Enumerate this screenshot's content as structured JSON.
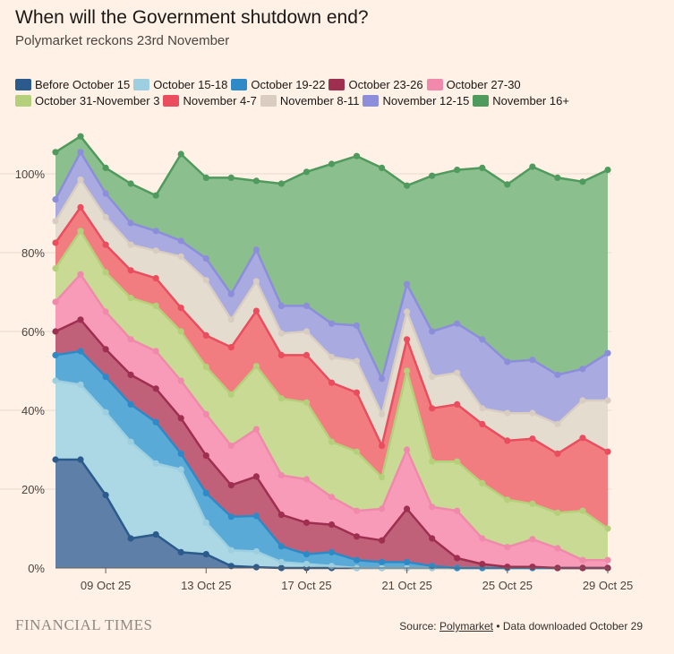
{
  "header": {
    "title": "When will the Government shutdown end?",
    "subtitle": "Polymarket reckons 23rd November"
  },
  "footer": {
    "brand": "FINANCIAL TIMES",
    "source_prefix": "Source: ",
    "source_link": "Polymarket",
    "source_suffix": " • Data downloaded October 29"
  },
  "chart_data": {
    "type": "area",
    "stacked": true,
    "x": [
      "Oct 07",
      "Oct 08",
      "Oct 09",
      "Oct 10",
      "Oct 11",
      "Oct 12",
      "Oct 13",
      "Oct 14",
      "Oct 15",
      "Oct 16",
      "Oct 17",
      "Oct 18",
      "Oct 19",
      "Oct 20",
      "Oct 21",
      "Oct 22",
      "Oct 23",
      "Oct 24",
      "Oct 25",
      "Oct 26",
      "Oct 27",
      "Oct 28",
      "Oct 29"
    ],
    "x_tick_labels": [
      "09 Oct 25",
      "13 Oct 25",
      "17 Oct 25",
      "21 Oct 25",
      "25 Oct 25",
      "29 Oct 25"
    ],
    "x_tick_dates": [
      "Oct 09",
      "Oct 13",
      "Oct 17",
      "Oct 21",
      "Oct 25",
      "Oct 29"
    ],
    "y_tick_labels": [
      "0%",
      "20%",
      "40%",
      "60%",
      "80%",
      "100%"
    ],
    "y_ticks": [
      0,
      20,
      40,
      60,
      80,
      100
    ],
    "ylim": [
      0,
      110
    ],
    "grid": true,
    "legend": "top",
    "unit": "%",
    "series": [
      {
        "name": "Before October 15",
        "color": "#2b5a8c",
        "fill": "#5e7fa8",
        "values": [
          27.5,
          27.5,
          18.5,
          7.5,
          8.5,
          4,
          3.5,
          0.5,
          0.2,
          0,
          0,
          0,
          0,
          0,
          0,
          0,
          0,
          0,
          0,
          0,
          0,
          0,
          0
        ]
      },
      {
        "name": "October 15-18",
        "color": "#9dcfe0",
        "fill": "#acd8e5",
        "values": [
          20,
          19,
          21,
          24.5,
          18,
          21,
          8,
          4,
          4,
          1.5,
          1,
          0.5,
          0,
          0,
          0,
          0,
          0,
          0,
          0,
          0,
          0,
          0,
          0
        ]
      },
      {
        "name": "October 19-22",
        "color": "#2e8ac7",
        "fill": "#5aaad8",
        "values": [
          6.5,
          8.5,
          9,
          9.5,
          10.5,
          4,
          7.5,
          8.5,
          9,
          4,
          2.5,
          3.5,
          2,
          1.5,
          1.5,
          0.5,
          0,
          0,
          0,
          0,
          0,
          0,
          0
        ]
      },
      {
        "name": "October 23-26",
        "color": "#9e2f50",
        "fill": "#c06179",
        "values": [
          6,
          8,
          7,
          7.5,
          8.5,
          9,
          9.5,
          8,
          10,
          8,
          8,
          7,
          6,
          5.5,
          13.5,
          7,
          2.5,
          1,
          0.3,
          0.3,
          0,
          0,
          0
        ]
      },
      {
        "name": "October 27-30",
        "color": "#f089ab",
        "fill": "#f89bb9",
        "values": [
          7.5,
          11.5,
          9.5,
          9,
          9.5,
          9.5,
          10.5,
          10,
          12,
          10,
          11,
          7,
          6.5,
          8,
          15,
          8,
          12,
          6.5,
          5,
          7,
          5,
          2,
          2
        ]
      },
      {
        "name": "October 31-November 3",
        "color": "#b5d07a",
        "fill": "#c9da94",
        "values": [
          8.5,
          11,
          10,
          10.5,
          11.5,
          12.5,
          12,
          13,
          16,
          19.5,
          19.5,
          14,
          15,
          8,
          20,
          11.5,
          12.5,
          14,
          12,
          9,
          9,
          12.5,
          8
        ]
      },
      {
        "name": "November 4-7",
        "color": "#ea4d5d",
        "fill": "#f27d80",
        "values": [
          6.5,
          6,
          7,
          7,
          7,
          6,
          8,
          12,
          14,
          11,
          12,
          15,
          15,
          8,
          8,
          13.5,
          14.5,
          15,
          15,
          16.5,
          15,
          18.5,
          19.5
        ]
      },
      {
        "name": "November 8-11",
        "color": "#d8cdc0",
        "fill": "#e5dcd0",
        "values": [
          5.5,
          7,
          7,
          6.5,
          7,
          13,
          14,
          7,
          7.5,
          5.5,
          6,
          6.5,
          8,
          8,
          7,
          8,
          8,
          4,
          7,
          6.5,
          7.5,
          9.5,
          13
        ]
      },
      {
        "name": "November 12-15",
        "color": "#8c8ddb",
        "fill": "#a8aae0",
        "values": [
          5.5,
          7,
          6,
          5.5,
          5,
          4,
          5.5,
          6.5,
          8,
          7,
          6.5,
          8.5,
          9,
          9,
          7,
          11.5,
          12.5,
          17.5,
          13,
          13.5,
          12.5,
          8,
          12
        ]
      },
      {
        "name": "November 16+",
        "color": "#4f9a5d",
        "fill": "#8cbf8e",
        "values": [
          12,
          4,
          6.5,
          10,
          9,
          22,
          20.5,
          29.5,
          17.5,
          31,
          34,
          40.5,
          43,
          53.5,
          25,
          39.5,
          39,
          43.5,
          45,
          49,
          50,
          47.5,
          46.5
        ]
      }
    ]
  }
}
